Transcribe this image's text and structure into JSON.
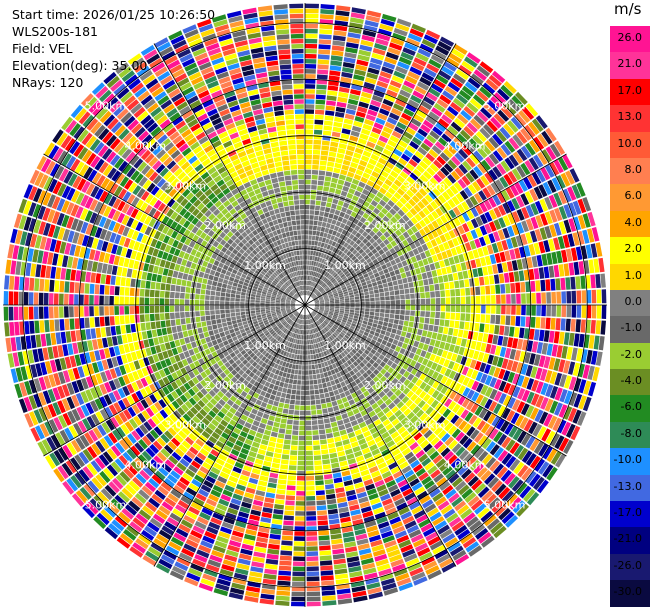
{
  "info": {
    "start_time": "Start time: 2026/01/25 10:26:50",
    "station": "WLS200s-181",
    "field": "Field: VEL",
    "elevation": "Elevation(deg): 35.00",
    "nrays": "NRays: 120"
  },
  "colorbar": {
    "unit": "m/s",
    "labels": [
      "26.0",
      "21.0",
      "17.0",
      "13.0",
      "10.0",
      "8.0",
      "6.0",
      "4.0",
      "2.0",
      "1.0",
      "0.0",
      "-1.0",
      "-2.0",
      "-4.0",
      "-6.0",
      "-8.0",
      "-10.0",
      "-13.0",
      "-17.0",
      "-21.0",
      "-26.0",
      "-30.0"
    ],
    "colors": [
      "#ff1493",
      "#ff3399",
      "#ff0000",
      "#ff3333",
      "#ff5a36",
      "#ff7f50",
      "#ff9933",
      "#ffa500",
      "#ffff00",
      "#ffd700",
      "#808080",
      "#696969",
      "#9acd32",
      "#6b8e23",
      "#228b22",
      "#2e8b57",
      "#1e90ff",
      "#4169e1",
      "#0000cd",
      "#000080",
      "#191970",
      "#0a0a40"
    ]
  },
  "range_rings": {
    "labels": [
      "1.00km",
      "2.00km",
      "3.00km",
      "4.00km",
      "5.00km"
    ]
  }
}
